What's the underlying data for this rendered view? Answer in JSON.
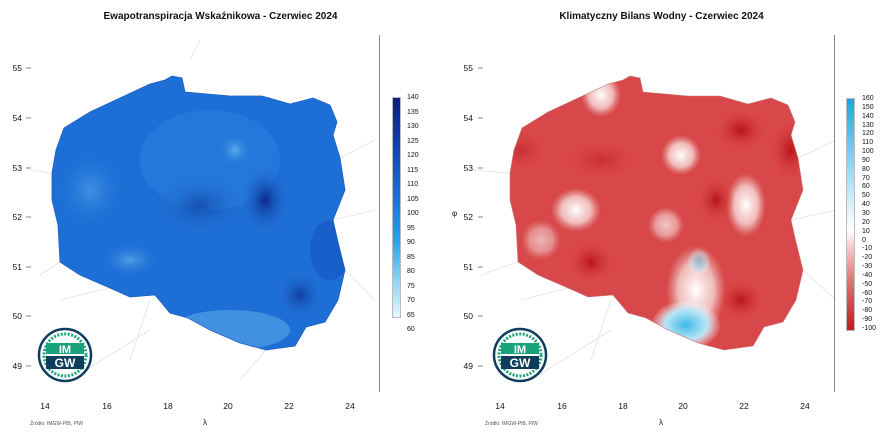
{
  "colors": {
    "et_dark": "#0a2a8a",
    "et_mid": "#1f6fd6",
    "et_light": "#d9f1fb",
    "kbw_red": "#cc1f22",
    "kbw_white": "#ffffff",
    "kbw_cyan": "#2fb8e6"
  },
  "maps": [
    {
      "title": "Ewapotranspiracja Wskaźnikowa - Czerwiec 2024",
      "y_ticks": [
        "55",
        "54",
        "53",
        "52",
        "51",
        "50",
        "49"
      ],
      "x_ticks": [
        "14",
        "16",
        "18",
        "20",
        "22",
        "24"
      ],
      "x_axis_label": "λ",
      "source": "Źródło: IMGW-PIB, PIW",
      "legend": {
        "ticks": [
          "140",
          "135",
          "130",
          "125",
          "120",
          "115",
          "110",
          "105",
          "100",
          "95",
          "90",
          "85",
          "80",
          "75",
          "70",
          "65",
          "60"
        ],
        "min": 60,
        "max": 140
      }
    },
    {
      "title": "Klimatyczny Bilans Wodny - Czerwiec 2024",
      "y_ticks": [
        "55",
        "54",
        "53",
        "52",
        "51",
        "50",
        "49"
      ],
      "x_ticks": [
        "14",
        "16",
        "18",
        "20",
        "22",
        "24"
      ],
      "x_axis_label": "λ",
      "y_axis_label": "φ",
      "source": "Źródło: IMGW-PIB, PIW",
      "legend": {
        "ticks": [
          "160",
          "150",
          "140",
          "130",
          "120",
          "110",
          "100",
          "90",
          "80",
          "70",
          "60",
          "50",
          "40",
          "30",
          "20",
          "10",
          "0",
          "-10",
          "-20",
          "-30",
          "-40",
          "-50",
          "-60",
          "-70",
          "-80",
          "-90",
          "-100"
        ],
        "min": -100,
        "max": 160
      }
    }
  ],
  "logo": {
    "top_text": "IM",
    "bottom_text": "GW"
  }
}
